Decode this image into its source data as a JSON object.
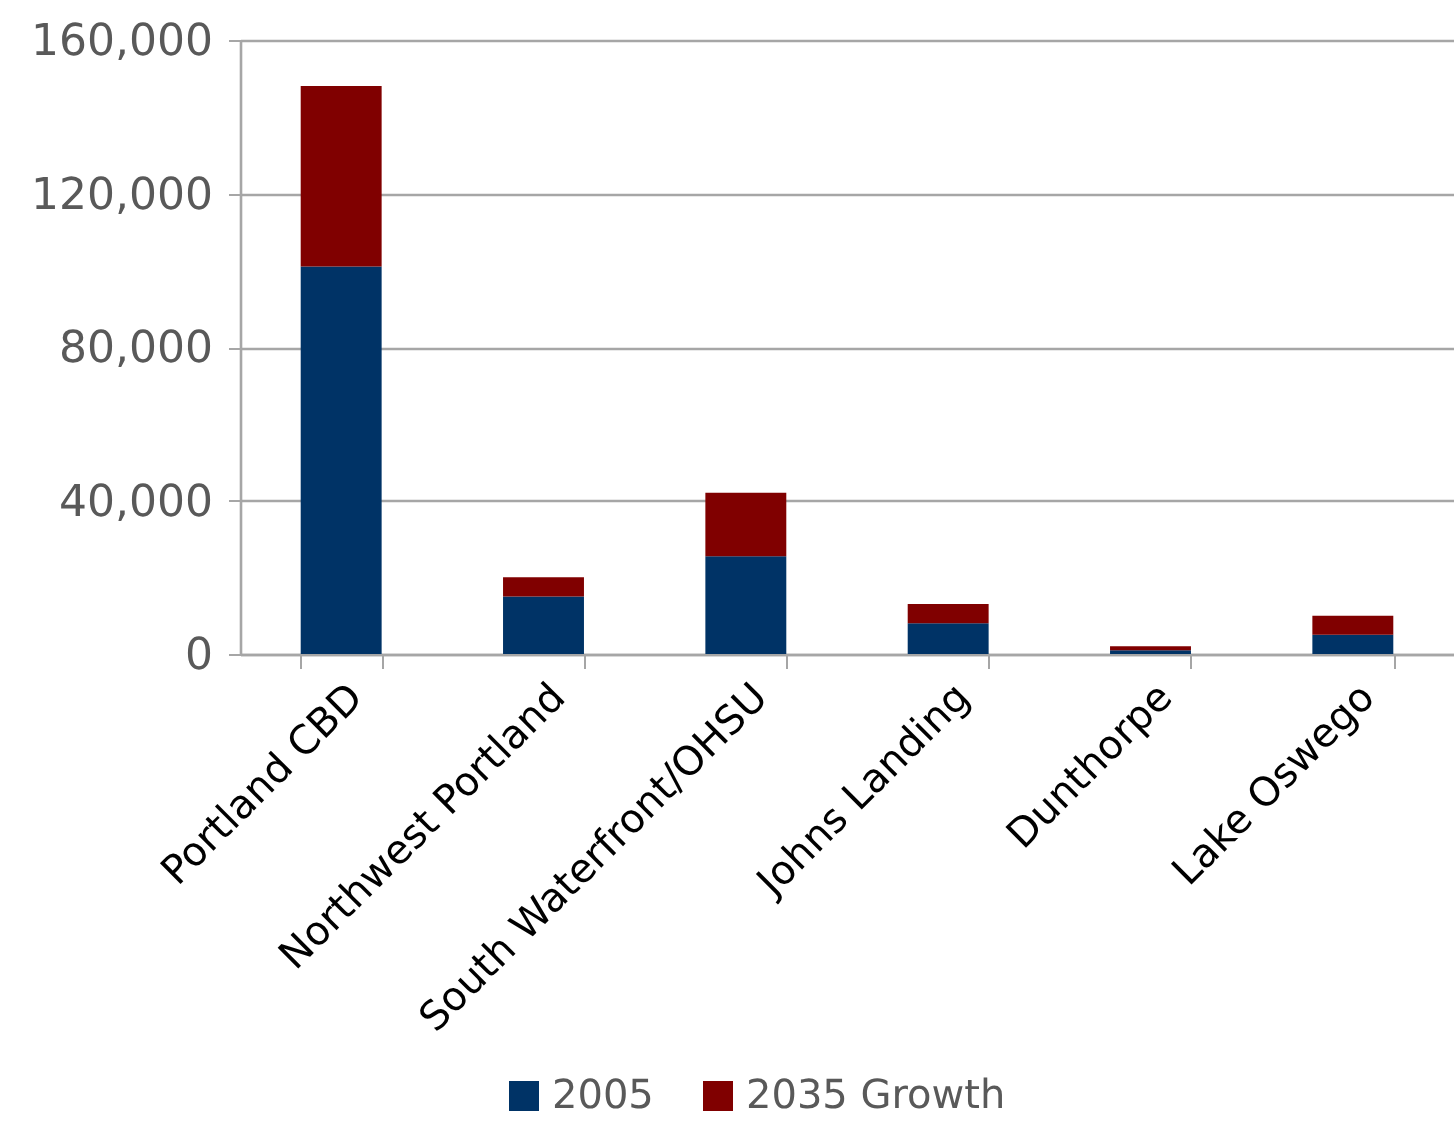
{
  "chart_data": {
    "type": "bar",
    "stacked": true,
    "categories": [
      "Portland CBD",
      "Northwest Portland",
      "South Waterfront/OHSU",
      "Johns Landing",
      "Dunthorpe",
      "Lake Oswego"
    ],
    "series": [
      {
        "name": "2005",
        "color": "#003366",
        "values": [
          101000,
          15000,
          25500,
          8000,
          1000,
          5000
        ]
      },
      {
        "name": "2035 Growth",
        "color": "#800000",
        "values": [
          47000,
          5000,
          16500,
          5000,
          1000,
          5000
        ]
      }
    ],
    "ylim": [
      0,
      160000
    ],
    "yticks": [
      {
        "value": 0,
        "label": "0"
      },
      {
        "value": 40000,
        "label": "40,000"
      },
      {
        "value": 80000,
        "label": "80,000"
      },
      {
        "value": 120000,
        "label": "120,000"
      },
      {
        "value": 160000,
        "label": "160,000"
      }
    ],
    "grid": "y",
    "legend": "bottom"
  }
}
